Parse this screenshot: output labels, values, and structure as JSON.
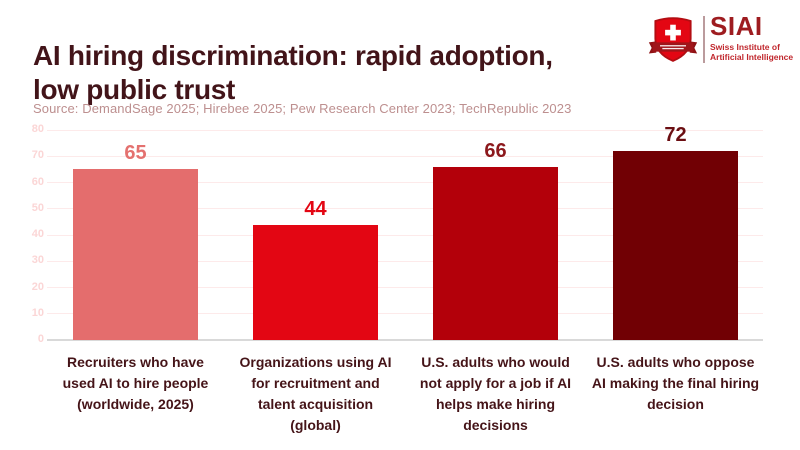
{
  "header": {
    "title_line1": "AI hiring discrimination: rapid adoption,",
    "title_line2": "low public trust",
    "source": "Source: DemandSage 2025; Hirebee 2025; Pew Research Center 2023; TechRepublic 2023"
  },
  "logo": {
    "acronym": "SIAI",
    "org_line1": "Swiss Institute of",
    "org_line2": "Artificial Intelligence",
    "shield_icon": "swiss-shield-icon",
    "colors": {
      "acronym_text": "#9e1c20",
      "org_text": "#c0272d",
      "shield_red": "#e30613",
      "ribbon_dark_red": "#a0151a"
    }
  },
  "chart_data": {
    "type": "bar",
    "title": "AI hiring discrimination: rapid adoption, low public trust",
    "xlabel": "",
    "ylabel": "",
    "categories": [
      "Recruiters who have\nused AI to hire people\n(worldwide, 2025)",
      "Organizations using AI\nfor recruitment and\ntalent acquisition\n(global)",
      "U.S. adults who would\nnot apply for a job if AI\nhelps make hiring\ndecisions",
      "U.S. adults who oppose\nAI making the final hiring\ndecision"
    ],
    "values": [
      65,
      44,
      66,
      72
    ],
    "ylim": [
      0,
      80
    ],
    "yticks": [
      0,
      10,
      20,
      30,
      40,
      50,
      60,
      70,
      80
    ],
    "grid": true,
    "legend": "none",
    "bar_colors": [
      "#e46d6d",
      "#e30613",
      "#b3000a",
      "#710004"
    ],
    "value_label_colors": [
      "#e4716f",
      "#e30613",
      "#8c181c",
      "#6b0e12"
    ],
    "gridline_color": "#fdeaea",
    "ytick_color": "#fbd6d6",
    "axis_line_color": "#d9d9d9",
    "category_label_color": "#451418",
    "title_color": "#421419",
    "source_color": "#bd8f8f"
  }
}
